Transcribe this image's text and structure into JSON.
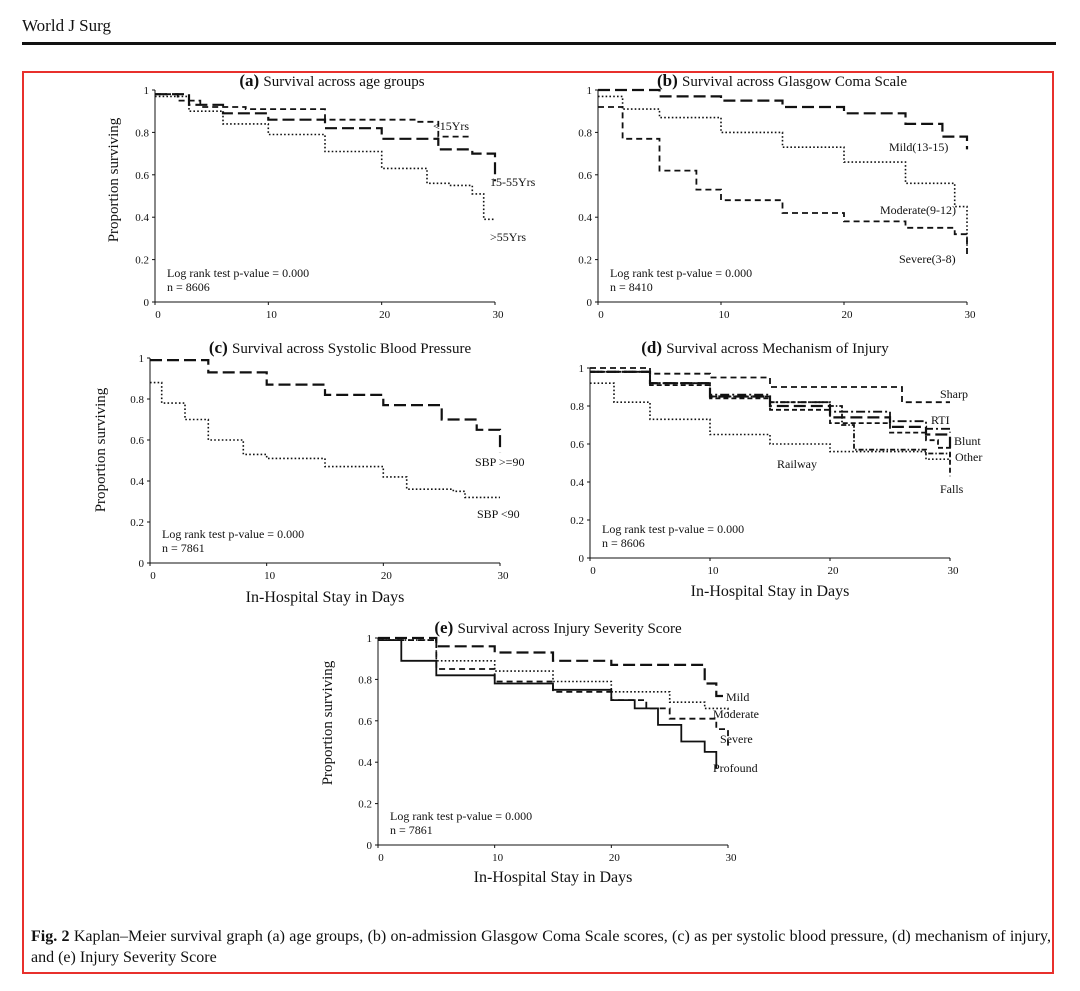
{
  "header": {
    "journal": "World J Surg"
  },
  "caption": {
    "label": "Fig. 2",
    "text": "Kaplan–Meier survival graph (a) age groups, (b) on-admission Glasgow Coma Scale scores, (c) as per systolic blood pressure, (d) mechanism of injury, and (e) Injury Severity Score"
  },
  "colors": {
    "frame": "#e8302c",
    "line": "#111111"
  },
  "chart_data": [
    {
      "id": "a",
      "type": "line",
      "panel_letter": "(a)",
      "title": "Survival across age groups",
      "ylabel": "Proportion surviving",
      "xlabel": "",
      "xlim": [
        0,
        30
      ],
      "ylim": [
        0,
        1
      ],
      "xticks": [
        0,
        10,
        20,
        30
      ],
      "yticks": [
        0,
        0.2,
        0.4,
        0.6,
        0.8,
        1
      ],
      "ytick_labels": [
        "0",
        "0.2",
        "0.4",
        "0.6",
        "0.8",
        "1"
      ],
      "annotations": [
        "Log rank test p-value = 0.000",
        "n = 8606"
      ],
      "series": [
        {
          "name": "<15Yrs",
          "style": "shortdash",
          "x": [
            0,
            2,
            4,
            8,
            15,
            20,
            23,
            25,
            28
          ],
          "y": [
            0.98,
            0.95,
            0.92,
            0.91,
            0.86,
            0.86,
            0.85,
            0.78,
            0.78
          ]
        },
        {
          "name": "15-55Yrs",
          "style": "longdash",
          "x": [
            0,
            3,
            6,
            10,
            15,
            20,
            25,
            28,
            30,
            30
          ],
          "y": [
            0.98,
            0.93,
            0.89,
            0.86,
            0.82,
            0.77,
            0.72,
            0.7,
            0.66,
            0.57
          ]
        },
        {
          "name": ">55Yrs",
          "style": "dotted",
          "x": [
            0,
            3,
            6,
            10,
            15,
            20,
            24,
            26,
            28,
            29,
            30
          ],
          "y": [
            0.97,
            0.9,
            0.84,
            0.79,
            0.71,
            0.63,
            0.56,
            0.55,
            0.51,
            0.39,
            0.39
          ]
        }
      ]
    },
    {
      "id": "b",
      "type": "line",
      "panel_letter": "(b)",
      "title": "Survival across Glasgow Coma Scale",
      "ylabel": "",
      "xlabel": "",
      "xlim": [
        0,
        30
      ],
      "ylim": [
        0,
        1
      ],
      "xticks": [
        0,
        10,
        20,
        30
      ],
      "yticks": [
        0,
        0.2,
        0.4,
        0.6,
        0.8,
        1
      ],
      "ytick_labels": [
        "0",
        "0.2",
        "0.4",
        "0.6",
        "0.8",
        "1"
      ],
      "annotations": [
        "Log rank test p-value = 0.000",
        "n = 8410"
      ],
      "series": [
        {
          "name": "Mild(13-15)",
          "style": "longdash",
          "x": [
            0,
            5,
            10,
            15,
            20,
            25,
            28,
            30
          ],
          "y": [
            1.0,
            0.97,
            0.95,
            0.92,
            0.89,
            0.84,
            0.78,
            0.72
          ]
        },
        {
          "name": "Moderate(9-12)",
          "style": "dotted",
          "x": [
            0,
            2,
            5,
            10,
            15,
            20,
            25,
            28,
            29,
            30
          ],
          "y": [
            0.97,
            0.91,
            0.87,
            0.8,
            0.73,
            0.66,
            0.56,
            0.56,
            0.45,
            0.25
          ]
        },
        {
          "name": "Severe(3-8)",
          "style": "shortdash",
          "x": [
            0,
            2,
            5,
            8,
            10,
            15,
            20,
            25,
            29,
            30
          ],
          "y": [
            0.92,
            0.77,
            0.62,
            0.53,
            0.48,
            0.42,
            0.38,
            0.35,
            0.32,
            0.21
          ]
        }
      ]
    },
    {
      "id": "c",
      "type": "line",
      "panel_letter": "(c)",
      "title": "Survival across Systolic Blood Pressure",
      "ylabel": "Proportion surviving",
      "xlabel": "In-Hospital Stay in Days",
      "xlim": [
        0,
        30
      ],
      "ylim": [
        0,
        1
      ],
      "xticks": [
        0,
        10,
        20,
        30
      ],
      "yticks": [
        0,
        0.2,
        0.4,
        0.6,
        0.8,
        1
      ],
      "ytick_labels": [
        "0",
        "0.2",
        "0.4",
        "0.6",
        "0.8",
        "1"
      ],
      "annotations": [
        "Log rank test p-value = 0.000",
        "n = 7861"
      ],
      "series": [
        {
          "name": "SBP >=90",
          "style": "longdash",
          "x": [
            0,
            5,
            10,
            15,
            20,
            25,
            28,
            30
          ],
          "y": [
            0.99,
            0.93,
            0.87,
            0.82,
            0.77,
            0.7,
            0.65,
            0.54
          ]
        },
        {
          "name": "SBP <90",
          "style": "dotted",
          "x": [
            0,
            1,
            3,
            5,
            8,
            10,
            15,
            20,
            22,
            26,
            27,
            30
          ],
          "y": [
            0.88,
            0.78,
            0.7,
            0.6,
            0.53,
            0.51,
            0.47,
            0.42,
            0.36,
            0.35,
            0.32,
            0.32
          ]
        }
      ]
    },
    {
      "id": "d",
      "type": "line",
      "panel_letter": "(d)",
      "title": "Survival across Mechanism of Injury",
      "ylabel": "",
      "xlabel": "In-Hospital Stay in Days",
      "xlim": [
        0,
        30
      ],
      "ylim": [
        0,
        1
      ],
      "xticks": [
        0,
        10,
        20,
        30
      ],
      "yticks": [
        0,
        0.2,
        0.4,
        0.6,
        0.8,
        1
      ],
      "ytick_labels": [
        "0",
        "0.2",
        "0.4",
        "0.6",
        "0.8",
        "1"
      ],
      "annotations": [
        "Log rank test p-value = 0.000",
        "n = 8606"
      ],
      "series": [
        {
          "name": "Sharp",
          "style": "shortdash",
          "x": [
            0,
            5,
            10,
            15,
            20,
            25,
            26,
            30
          ],
          "y": [
            1.0,
            0.97,
            0.95,
            0.9,
            0.9,
            0.9,
            0.82,
            0.82
          ]
        },
        {
          "name": "RTI",
          "style": "dashdot",
          "x": [
            0,
            5,
            10,
            15,
            20,
            25,
            28,
            30
          ],
          "y": [
            0.98,
            0.92,
            0.86,
            0.82,
            0.77,
            0.72,
            0.68,
            0.66
          ]
        },
        {
          "name": "Blunt",
          "style": "longdash",
          "x": [
            0,
            5,
            10,
            15,
            20,
            25,
            28,
            30
          ],
          "y": [
            0.98,
            0.92,
            0.85,
            0.8,
            0.74,
            0.69,
            0.65,
            0.58
          ]
        },
        {
          "name": "Other",
          "style": "dashdot2",
          "x": [
            0,
            5,
            10,
            15,
            20,
            21,
            22,
            25,
            28,
            30
          ],
          "y": [
            0.98,
            0.92,
            0.85,
            0.82,
            0.8,
            0.7,
            0.57,
            0.57,
            0.55,
            0.53
          ]
        },
        {
          "name": "Railway",
          "style": "dotted",
          "x": [
            0,
            2,
            5,
            10,
            15,
            20,
            25,
            28,
            30
          ],
          "y": [
            0.92,
            0.82,
            0.73,
            0.65,
            0.6,
            0.56,
            0.56,
            0.52,
            0.5
          ]
        },
        {
          "name": "Falls",
          "style": "shortdash2",
          "x": [
            0,
            5,
            10,
            15,
            20,
            25,
            28,
            29,
            30
          ],
          "y": [
            0.98,
            0.91,
            0.84,
            0.78,
            0.71,
            0.66,
            0.62,
            0.58,
            0.43
          ]
        }
      ]
    },
    {
      "id": "e",
      "type": "line",
      "panel_letter": "(e)",
      "title": "Survival across Injury Severity Score",
      "ylabel": "Proportion surviving",
      "xlabel": "In-Hospital Stay in Days",
      "xlim": [
        0,
        30
      ],
      "ylim": [
        0,
        1
      ],
      "xticks": [
        0,
        10,
        20,
        30
      ],
      "yticks": [
        0,
        0.2,
        0.4,
        0.6,
        0.8,
        1
      ],
      "ytick_labels": [
        "0",
        "0.2",
        "0.4",
        "0.6",
        "0.8",
        "1"
      ],
      "annotations": [
        "Log rank test p-value = 0.000",
        "n = 7861"
      ],
      "series": [
        {
          "name": "Mild",
          "style": "longdash",
          "x": [
            0,
            5,
            10,
            15,
            20,
            25,
            28,
            29,
            30
          ],
          "y": [
            1.0,
            0.96,
            0.93,
            0.89,
            0.87,
            0.87,
            0.78,
            0.72,
            0.72
          ]
        },
        {
          "name": "Moderate",
          "style": "dotted",
          "x": [
            0,
            5,
            10,
            15,
            20,
            25,
            28,
            30
          ],
          "y": [
            0.99,
            0.89,
            0.84,
            0.79,
            0.74,
            0.69,
            0.66,
            0.63
          ]
        },
        {
          "name": "Severe",
          "style": "shortdash",
          "x": [
            0,
            5,
            10,
            15,
            20,
            23,
            25,
            28,
            29,
            30
          ],
          "y": [
            0.99,
            0.85,
            0.79,
            0.74,
            0.7,
            0.66,
            0.61,
            0.61,
            0.56,
            0.48
          ]
        },
        {
          "name": "Profound",
          "style": "solid",
          "x": [
            0,
            2,
            5,
            10,
            15,
            20,
            22,
            24,
            26,
            28,
            29
          ],
          "y": [
            0.99,
            0.89,
            0.82,
            0.78,
            0.75,
            0.7,
            0.66,
            0.58,
            0.5,
            0.45,
            0.37
          ]
        }
      ]
    }
  ]
}
